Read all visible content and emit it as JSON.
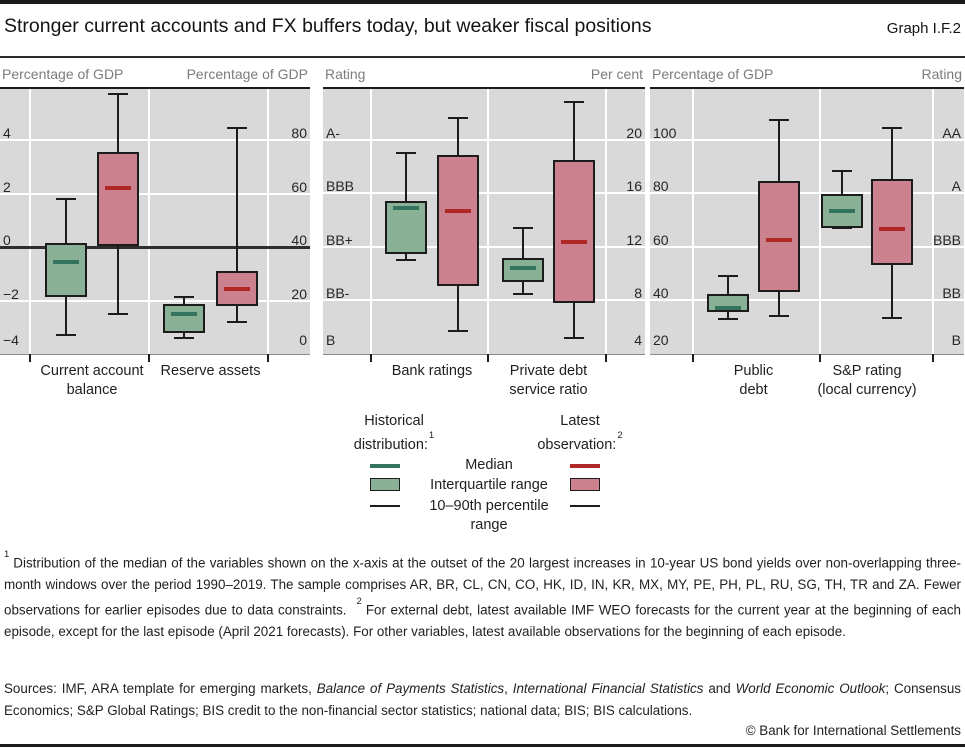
{
  "title": "Stronger current accounts and FX buffers today, but weaker fiscal positions",
  "graph_label": "Graph I.F.2",
  "colors": {
    "panel_background": "#d9d9d9",
    "gridline": "#ffffff",
    "axis_title_grey": "#7c7c7c",
    "box_border": "#1c1c1c",
    "historical_fill": "#8ab095",
    "historical_median": "#34745e",
    "latest_fill": "#cb828e",
    "latest_median": "#b02826",
    "zero_line": "#2e2e2e"
  },
  "series_styles": {
    "historical": {
      "name": "Historical distribution",
      "fill": "#8ab095",
      "median": "#34745e"
    },
    "latest": {
      "name": "Latest observation",
      "fill": "#cb828e",
      "median": "#b02826"
    }
  },
  "legend": {
    "historical_header_line1": "Historical",
    "historical_header_line2": "distribution:",
    "historical_sup": "1",
    "latest_header_line1": "Latest",
    "latest_header_line2": "observation:",
    "latest_sup": "2",
    "median_label": "Median",
    "iqr_label": "Interquartile range",
    "percentile_label_line1": "10–90th percentile",
    "percentile_label_line2": "range"
  },
  "footnotes": {
    "sup1": "1",
    "text1": "Distribution of the median of the variables shown on the x-axis at the outset of the 20 largest increases in 10-year US bond yields over non-overlapping three-month windows over the period 1990–2019. The sample comprises AR, BR, CL, CN, CO, HK, ID, IN, KR, MX, MY, PE, PH, PL, RU, SG, TH, TR and ZA. Fewer observations for earlier episodes due to data constraints.",
    "sup2": "2",
    "text2": "For external debt, latest available IMF WEO forecasts for the current year at the beginning of each episode, except for the last episode (April 2021 forecasts). For other variables, latest available observations for the beginning of each episode."
  },
  "sources": {
    "segments": [
      {
        "text": "Sources: IMF, ARA template for emerging markets, ",
        "italic": false
      },
      {
        "text": "Balance of Payments Statistics",
        "italic": true
      },
      {
        "text": ", ",
        "italic": false
      },
      {
        "text": "International Financial Statistics",
        "italic": true
      },
      {
        "text": " and ",
        "italic": false
      },
      {
        "text": "World Economic Outlook",
        "italic": true
      },
      {
        "text": "; Consensus Economics; S&P Global Ratings; BIS credit to the non-financial sector statistics; national data; BIS; BIS calculations.",
        "italic": false
      }
    ]
  },
  "copyright": "© Bank for International Settlements",
  "chart_data": [
    {
      "type": "boxplot",
      "left_axis": {
        "title": "Percentage of GDP",
        "range": [
          -4,
          5.92
        ],
        "ticks": [
          {
            "v": -4,
            "label": "−4"
          },
          {
            "v": -2,
            "label": "−2"
          },
          {
            "v": 0,
            "label": "0"
          },
          {
            "v": 2,
            "label": "2"
          },
          {
            "v": 4,
            "label": "4"
          }
        ]
      },
      "right_axis": {
        "title": "Percentage of GDP",
        "range": [
          0,
          99.2
        ],
        "ticks": [
          {
            "v": 0,
            "label": "0"
          },
          {
            "v": 20,
            "label": "20"
          },
          {
            "v": 40,
            "label": "40"
          },
          {
            "v": 60,
            "label": "60"
          },
          {
            "v": 80,
            "label": "80"
          }
        ]
      },
      "gridlines": [
        -2,
        0,
        2,
        4
      ],
      "zero_line": 0,
      "groups": [
        {
          "label_lines": [
            "Current account",
            "balance"
          ],
          "axis": "left",
          "historical": {
            "p10": -3.3,
            "q1": -1.85,
            "median": -0.55,
            "q3": 0.15,
            "p90": 1.8
          },
          "latest": {
            "p10": -2.5,
            "q1": 0.05,
            "median": 2.2,
            "q3": 3.55,
            "p90": 5.75
          }
        },
        {
          "label_lines": [
            "Reserve assets"
          ],
          "axis": "right",
          "historical": {
            "p10": 5.9,
            "q1": 7.7,
            "median": 15,
            "q3": 18.6,
            "p90": 21.3
          },
          "latest": {
            "p10": 11.8,
            "q1": 17.8,
            "median": 24.3,
            "q3": 31,
            "p90": 84.5
          }
        }
      ]
    },
    {
      "type": "boxplot",
      "left_axis": {
        "title": "Rating",
        "range": [
          4,
          23.8
        ],
        "ticks": [
          {
            "v": 4,
            "label": "B"
          },
          {
            "v": 8,
            "label": "BB-"
          },
          {
            "v": 12,
            "label": "BB+"
          },
          {
            "v": 16,
            "label": "BBB"
          },
          {
            "v": 20,
            "label": "A-"
          }
        ]
      },
      "right_axis": {
        "title": "Per cent",
        "range": [
          4,
          23.8
        ],
        "ticks": [
          {
            "v": 4,
            "label": "4"
          },
          {
            "v": 8,
            "label": "8"
          },
          {
            "v": 12,
            "label": "12"
          },
          {
            "v": 16,
            "label": "16"
          },
          {
            "v": 20,
            "label": "20"
          }
        ]
      },
      "gridlines": [
        8,
        12,
        16,
        20
      ],
      "zero_line": null,
      "groups": [
        {
          "label_lines": [
            "Bank ratings"
          ],
          "axis": "left",
          "historical": {
            "p10": 11.0,
            "q1": 11.45,
            "median": 14.9,
            "q3": 15.4,
            "p90": 19.0
          },
          "latest": {
            "p10": 5.7,
            "q1": 9.1,
            "median": 14.65,
            "q3": 18.9,
            "p90": 21.6
          }
        },
        {
          "label_lines": [
            "Private debt",
            "service ratio"
          ],
          "axis": "right",
          "historical": {
            "p10": 8.5,
            "q1": 9.4,
            "median": 10.4,
            "q3": 11.2,
            "p90": 13.4
          },
          "latest": {
            "p10": 5.2,
            "q1": 7.8,
            "median": 12.4,
            "q3": 18.5,
            "p90": 22.8
          }
        }
      ]
    },
    {
      "type": "boxplot",
      "left_axis": {
        "title": "Percentage of GDP",
        "range": [
          20,
          118.9
        ],
        "ticks": [
          {
            "v": 20,
            "label": "20"
          },
          {
            "v": 40,
            "label": "40"
          },
          {
            "v": 60,
            "label": "60"
          },
          {
            "v": 80,
            "label": "80"
          },
          {
            "v": 100,
            "label": "100"
          }
        ]
      },
      "right_axis": {
        "title": "Rating",
        "range": [
          20,
          118.9
        ],
        "ticks": [
          {
            "v": 20,
            "label": "B"
          },
          {
            "v": 40,
            "label": "BB"
          },
          {
            "v": 60,
            "label": "BBB"
          },
          {
            "v": 80,
            "label": "A"
          },
          {
            "v": 100,
            "label": "AA"
          }
        ]
      },
      "gridlines": [
        40,
        60,
        80,
        100
      ],
      "zero_line": null,
      "groups": [
        {
          "label_lines": [
            "Public",
            "debt"
          ],
          "axis": "left",
          "historical": {
            "p10": 33,
            "q1": 35.5,
            "median": 37,
            "q3": 42.5,
            "p90": 49
          },
          "latest": {
            "p10": 34,
            "q1": 43,
            "median": 62.5,
            "q3": 84.5,
            "p90": 107.5
          }
        },
        {
          "label_lines": [
            "S&P rating",
            "(local currency)"
          ],
          "axis": "right",
          "historical": {
            "p10": 67,
            "q1": 67.2,
            "median": 73.3,
            "q3": 79.8,
            "p90": 88.3
          },
          "latest": {
            "p10": 33.4,
            "q1": 53.1,
            "median": 66.6,
            "q3": 85.2,
            "p90": 104.4
          }
        }
      ]
    }
  ]
}
